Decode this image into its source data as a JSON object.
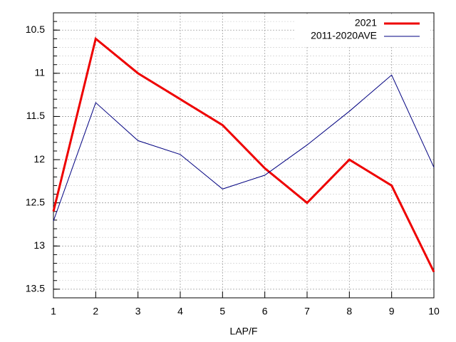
{
  "chart_data": {
    "type": "line",
    "x_label": "LAP/F",
    "x": [
      1,
      2,
      3,
      4,
      5,
      6,
      7,
      8,
      9,
      10
    ],
    "series": [
      {
        "name": "2021",
        "color": "#ee0000",
        "values": [
          12.6,
          10.6,
          11.0,
          11.3,
          11.6,
          12.1,
          12.5,
          12.0,
          12.3,
          13.3
        ]
      },
      {
        "name": "2011-2020AVE",
        "color": "#000080",
        "values": [
          12.71,
          11.34,
          11.78,
          11.94,
          12.34,
          12.18,
          11.83,
          11.44,
          11.02,
          12.09
        ]
      }
    ],
    "xlim": [
      1,
      10
    ],
    "xticks": [
      1,
      2,
      3,
      4,
      5,
      6,
      7,
      8,
      9,
      10
    ],
    "ylim": [
      10.3,
      13.6
    ],
    "yticks": [
      10.5,
      11,
      11.5,
      12,
      12.5,
      13,
      13.5
    ],
    "y_reversed": true,
    "y_minor_tics": 5,
    "grid": true,
    "legend": "top-right"
  }
}
